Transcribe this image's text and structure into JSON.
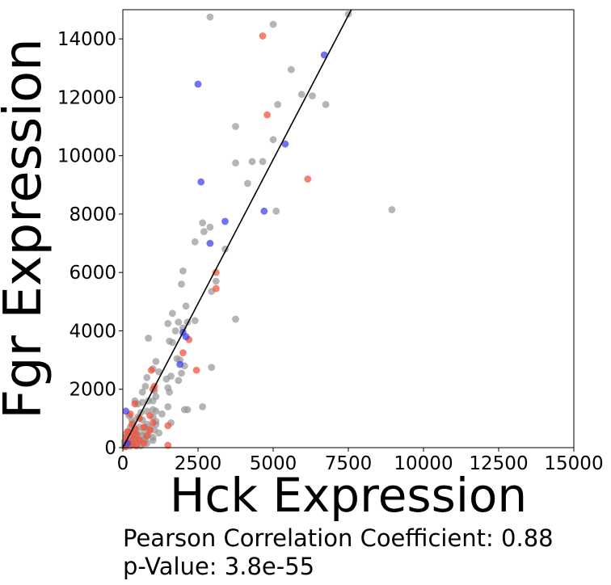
{
  "chart_data": {
    "type": "scatter",
    "xlabel": "Hck Expression",
    "ylabel": "Fgr Expression",
    "xlim": [
      0,
      15000
    ],
    "ylim": [
      0,
      15000
    ],
    "x_ticks": [
      0,
      2500,
      5000,
      7500,
      10000,
      12500,
      15000
    ],
    "y_ticks": [
      0,
      2000,
      4000,
      6000,
      8000,
      10000,
      12000,
      14000
    ],
    "x_tick_labels": [
      "0",
      "2500",
      "5000",
      "7500",
      "10000",
      "12500",
      "15000"
    ],
    "y_tick_labels": [
      "0",
      "2000",
      "4000",
      "6000",
      "8000",
      "10000",
      "12000",
      "14000"
    ],
    "grid": false,
    "colors": {
      "gray": "#999999",
      "red": "#f4513a",
      "blue": "#3b3de8",
      "fit_line": "#000000"
    },
    "fit_line": {
      "x": [
        0,
        7600
      ],
      "y": [
        0,
        15000
      ]
    },
    "series": [
      {
        "color_key": "gray",
        "points": [
          [
            2900,
            14750
          ],
          [
            7500,
            14850
          ],
          [
            5000,
            14500
          ],
          [
            5600,
            12950
          ],
          [
            5950,
            12100
          ],
          [
            6300,
            12050
          ],
          [
            6750,
            11750
          ],
          [
            5150,
            11750
          ],
          [
            3750,
            11000
          ],
          [
            5000,
            10550
          ],
          [
            4300,
            9800
          ],
          [
            4650,
            9800
          ],
          [
            3750,
            9750
          ],
          [
            4150,
            9050
          ],
          [
            5100,
            8100
          ],
          [
            8950,
            8150
          ],
          [
            2650,
            7700
          ],
          [
            2900,
            7550
          ],
          [
            2700,
            7400
          ],
          [
            2400,
            7050
          ],
          [
            3400,
            6800
          ],
          [
            2000,
            6050
          ],
          [
            3100,
            5700
          ],
          [
            1950,
            5600
          ],
          [
            2950,
            5350
          ],
          [
            2100,
            4850
          ],
          [
            1650,
            4600
          ],
          [
            3750,
            4400
          ],
          [
            2400,
            4350
          ],
          [
            1850,
            4300
          ],
          [
            2150,
            4300
          ],
          [
            1500,
            4250
          ],
          [
            2000,
            4100
          ],
          [
            1750,
            4000
          ],
          [
            850,
            3750
          ],
          [
            1550,
            3650
          ],
          [
            1650,
            3600
          ],
          [
            1800,
            3050
          ],
          [
            1900,
            3000
          ],
          [
            1100,
            2950
          ],
          [
            2050,
            2800
          ],
          [
            2950,
            2750
          ],
          [
            1000,
            2700
          ],
          [
            1200,
            2600
          ],
          [
            1950,
            2550
          ],
          [
            1600,
            2450
          ],
          [
            800,
            2400
          ],
          [
            1450,
            2350
          ],
          [
            1850,
            2300
          ],
          [
            750,
            2100
          ],
          [
            1500,
            2050
          ],
          [
            1050,
            1950
          ],
          [
            650,
            1900
          ],
          [
            1550,
            1900
          ],
          [
            1100,
            1750
          ],
          [
            850,
            1600
          ],
          [
            400,
            1600
          ],
          [
            1000,
            1600
          ],
          [
            650,
            1550
          ],
          [
            500,
            1500
          ],
          [
            1500,
            1400
          ],
          [
            2650,
            1400
          ],
          [
            1000,
            1300
          ],
          [
            2050,
            1300
          ],
          [
            2150,
            1300
          ],
          [
            800,
            1250
          ],
          [
            1100,
            1250
          ],
          [
            600,
            1200
          ],
          [
            1300,
            1150
          ],
          [
            200,
            1100
          ],
          [
            500,
            1050
          ],
          [
            1000,
            1050
          ],
          [
            300,
            950
          ],
          [
            650,
            950
          ],
          [
            1100,
            900
          ],
          [
            350,
            850
          ],
          [
            1600,
            850
          ],
          [
            800,
            800
          ],
          [
            1100,
            800
          ],
          [
            250,
            700
          ],
          [
            550,
            700
          ],
          [
            750,
            700
          ],
          [
            900,
            650
          ],
          [
            450,
            600
          ],
          [
            1050,
            600
          ],
          [
            200,
            550
          ],
          [
            700,
            550
          ],
          [
            350,
            500
          ],
          [
            1200,
            500
          ],
          [
            100,
            450
          ],
          [
            500,
            450
          ],
          [
            850,
            450
          ],
          [
            250,
            400
          ],
          [
            650,
            400
          ],
          [
            1000,
            350
          ],
          [
            150,
            300
          ],
          [
            400,
            300
          ],
          [
            700,
            300
          ],
          [
            550,
            250
          ],
          [
            300,
            250
          ],
          [
            750,
            250
          ],
          [
            1000,
            250
          ],
          [
            50,
            200
          ],
          [
            200,
            150
          ],
          [
            500,
            150
          ],
          [
            800,
            150
          ],
          [
            350,
            100
          ],
          [
            100,
            80
          ],
          [
            600,
            60
          ],
          [
            250,
            50
          ],
          [
            50,
            40
          ]
        ]
      },
      {
        "color_key": "red",
        "points": [
          [
            4650,
            14100
          ],
          [
            4800,
            11400
          ],
          [
            6150,
            9200
          ],
          [
            3100,
            6000
          ],
          [
            3100,
            5450
          ],
          [
            2200,
            3700
          ],
          [
            2000,
            3250
          ],
          [
            2450,
            2650
          ],
          [
            950,
            2650
          ],
          [
            1050,
            2100
          ],
          [
            1000,
            2000
          ],
          [
            400,
            1500
          ],
          [
            250,
            1150
          ],
          [
            900,
            1100
          ],
          [
            550,
            1000
          ],
          [
            1000,
            850
          ],
          [
            300,
            800
          ],
          [
            1500,
            750
          ],
          [
            700,
            700
          ],
          [
            400,
            650
          ],
          [
            900,
            600
          ],
          [
            150,
            550
          ],
          [
            250,
            500
          ],
          [
            450,
            450
          ],
          [
            800,
            400
          ],
          [
            100,
            350
          ],
          [
            350,
            300
          ],
          [
            550,
            250
          ],
          [
            150,
            200
          ],
          [
            700,
            150
          ],
          [
            300,
            120
          ],
          [
            1500,
            80
          ],
          [
            450,
            60
          ],
          [
            100,
            30
          ]
        ]
      },
      {
        "color_key": "blue",
        "points": [
          [
            6700,
            13450
          ],
          [
            2500,
            12450
          ],
          [
            5400,
            10400
          ],
          [
            2600,
            9100
          ],
          [
            4700,
            8100
          ],
          [
            3400,
            7750
          ],
          [
            2900,
            7000
          ],
          [
            2000,
            3950
          ],
          [
            2100,
            3800
          ],
          [
            1900,
            2850
          ],
          [
            100,
            1250
          ],
          [
            150,
            150
          ]
        ]
      }
    ]
  },
  "annotations": {
    "correlation": "Pearson Correlation Coefficient: 0.88",
    "p_value": "p-Value: 3.8e-55"
  }
}
